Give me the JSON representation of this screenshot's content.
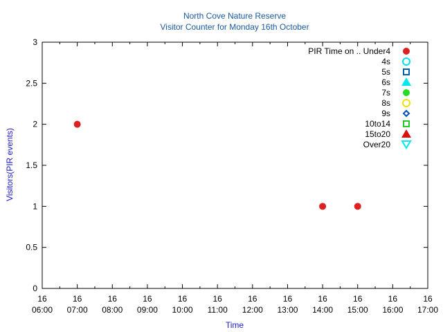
{
  "chart_data": {
    "type": "scatter",
    "title": "North Cove Nature Reserve",
    "subtitle": "Visitor Counter for Monday 16th October",
    "xlabel": "Time",
    "ylabel": "Visitors(PIR events)",
    "x_ticks": [
      {
        "day": "16",
        "time": "06:00"
      },
      {
        "day": "16",
        "time": "07:00"
      },
      {
        "day": "16",
        "time": "08:00"
      },
      {
        "day": "16",
        "time": "09:00"
      },
      {
        "day": "16",
        "time": "10:00"
      },
      {
        "day": "16",
        "time": "11:00"
      },
      {
        "day": "16",
        "time": "12:00"
      },
      {
        "day": "16",
        "time": "13:00"
      },
      {
        "day": "16",
        "time": "14:00"
      },
      {
        "day": "16",
        "time": "15:00"
      },
      {
        "day": "16",
        "time": "16:00"
      },
      {
        "day": "16",
        "time": "17:00"
      }
    ],
    "xlim": [
      "06:00",
      "17:00"
    ],
    "y_ticks": [
      "0",
      "0.5",
      "1",
      "1.5",
      "2",
      "2.5",
      "3"
    ],
    "ylim": [
      0,
      3
    ],
    "grid": false,
    "legend_position": "top-right",
    "series": [
      {
        "name": "PIR Time on .. Under4",
        "marker": "filled-circle",
        "color": "#dd2020",
        "points": [
          {
            "x": "07:00",
            "y": 2
          },
          {
            "x": "14:00",
            "y": 1
          },
          {
            "x": "15:00",
            "y": 1
          }
        ]
      },
      {
        "name": "4s",
        "marker": "open-circle",
        "color": "#00e0ee",
        "points": []
      },
      {
        "name": "5s",
        "marker": "open-square",
        "color": "#0060b0",
        "points": []
      },
      {
        "name": "6s",
        "marker": "filled-triangle-up",
        "color": "#00e8f0",
        "points": []
      },
      {
        "name": "7s",
        "marker": "filled-circle",
        "color": "#22dd22",
        "points": []
      },
      {
        "name": "8s",
        "marker": "open-circle",
        "color": "#f0e000",
        "points": []
      },
      {
        "name": "9s",
        "marker": "open-diamond",
        "color": "#0050c0",
        "points": []
      },
      {
        "name": "10to14",
        "marker": "open-square",
        "color": "#22cc22",
        "points": []
      },
      {
        "name": "15to20",
        "marker": "filled-triangle-up",
        "color": "#dd1010",
        "points": []
      },
      {
        "name": "Over20",
        "marker": "open-triangle-down",
        "color": "#00e8f0",
        "points": []
      }
    ],
    "colors": {
      "title": "#1a5aa0",
      "axis_label": "#1a1ad0",
      "axis": "#000000"
    }
  }
}
